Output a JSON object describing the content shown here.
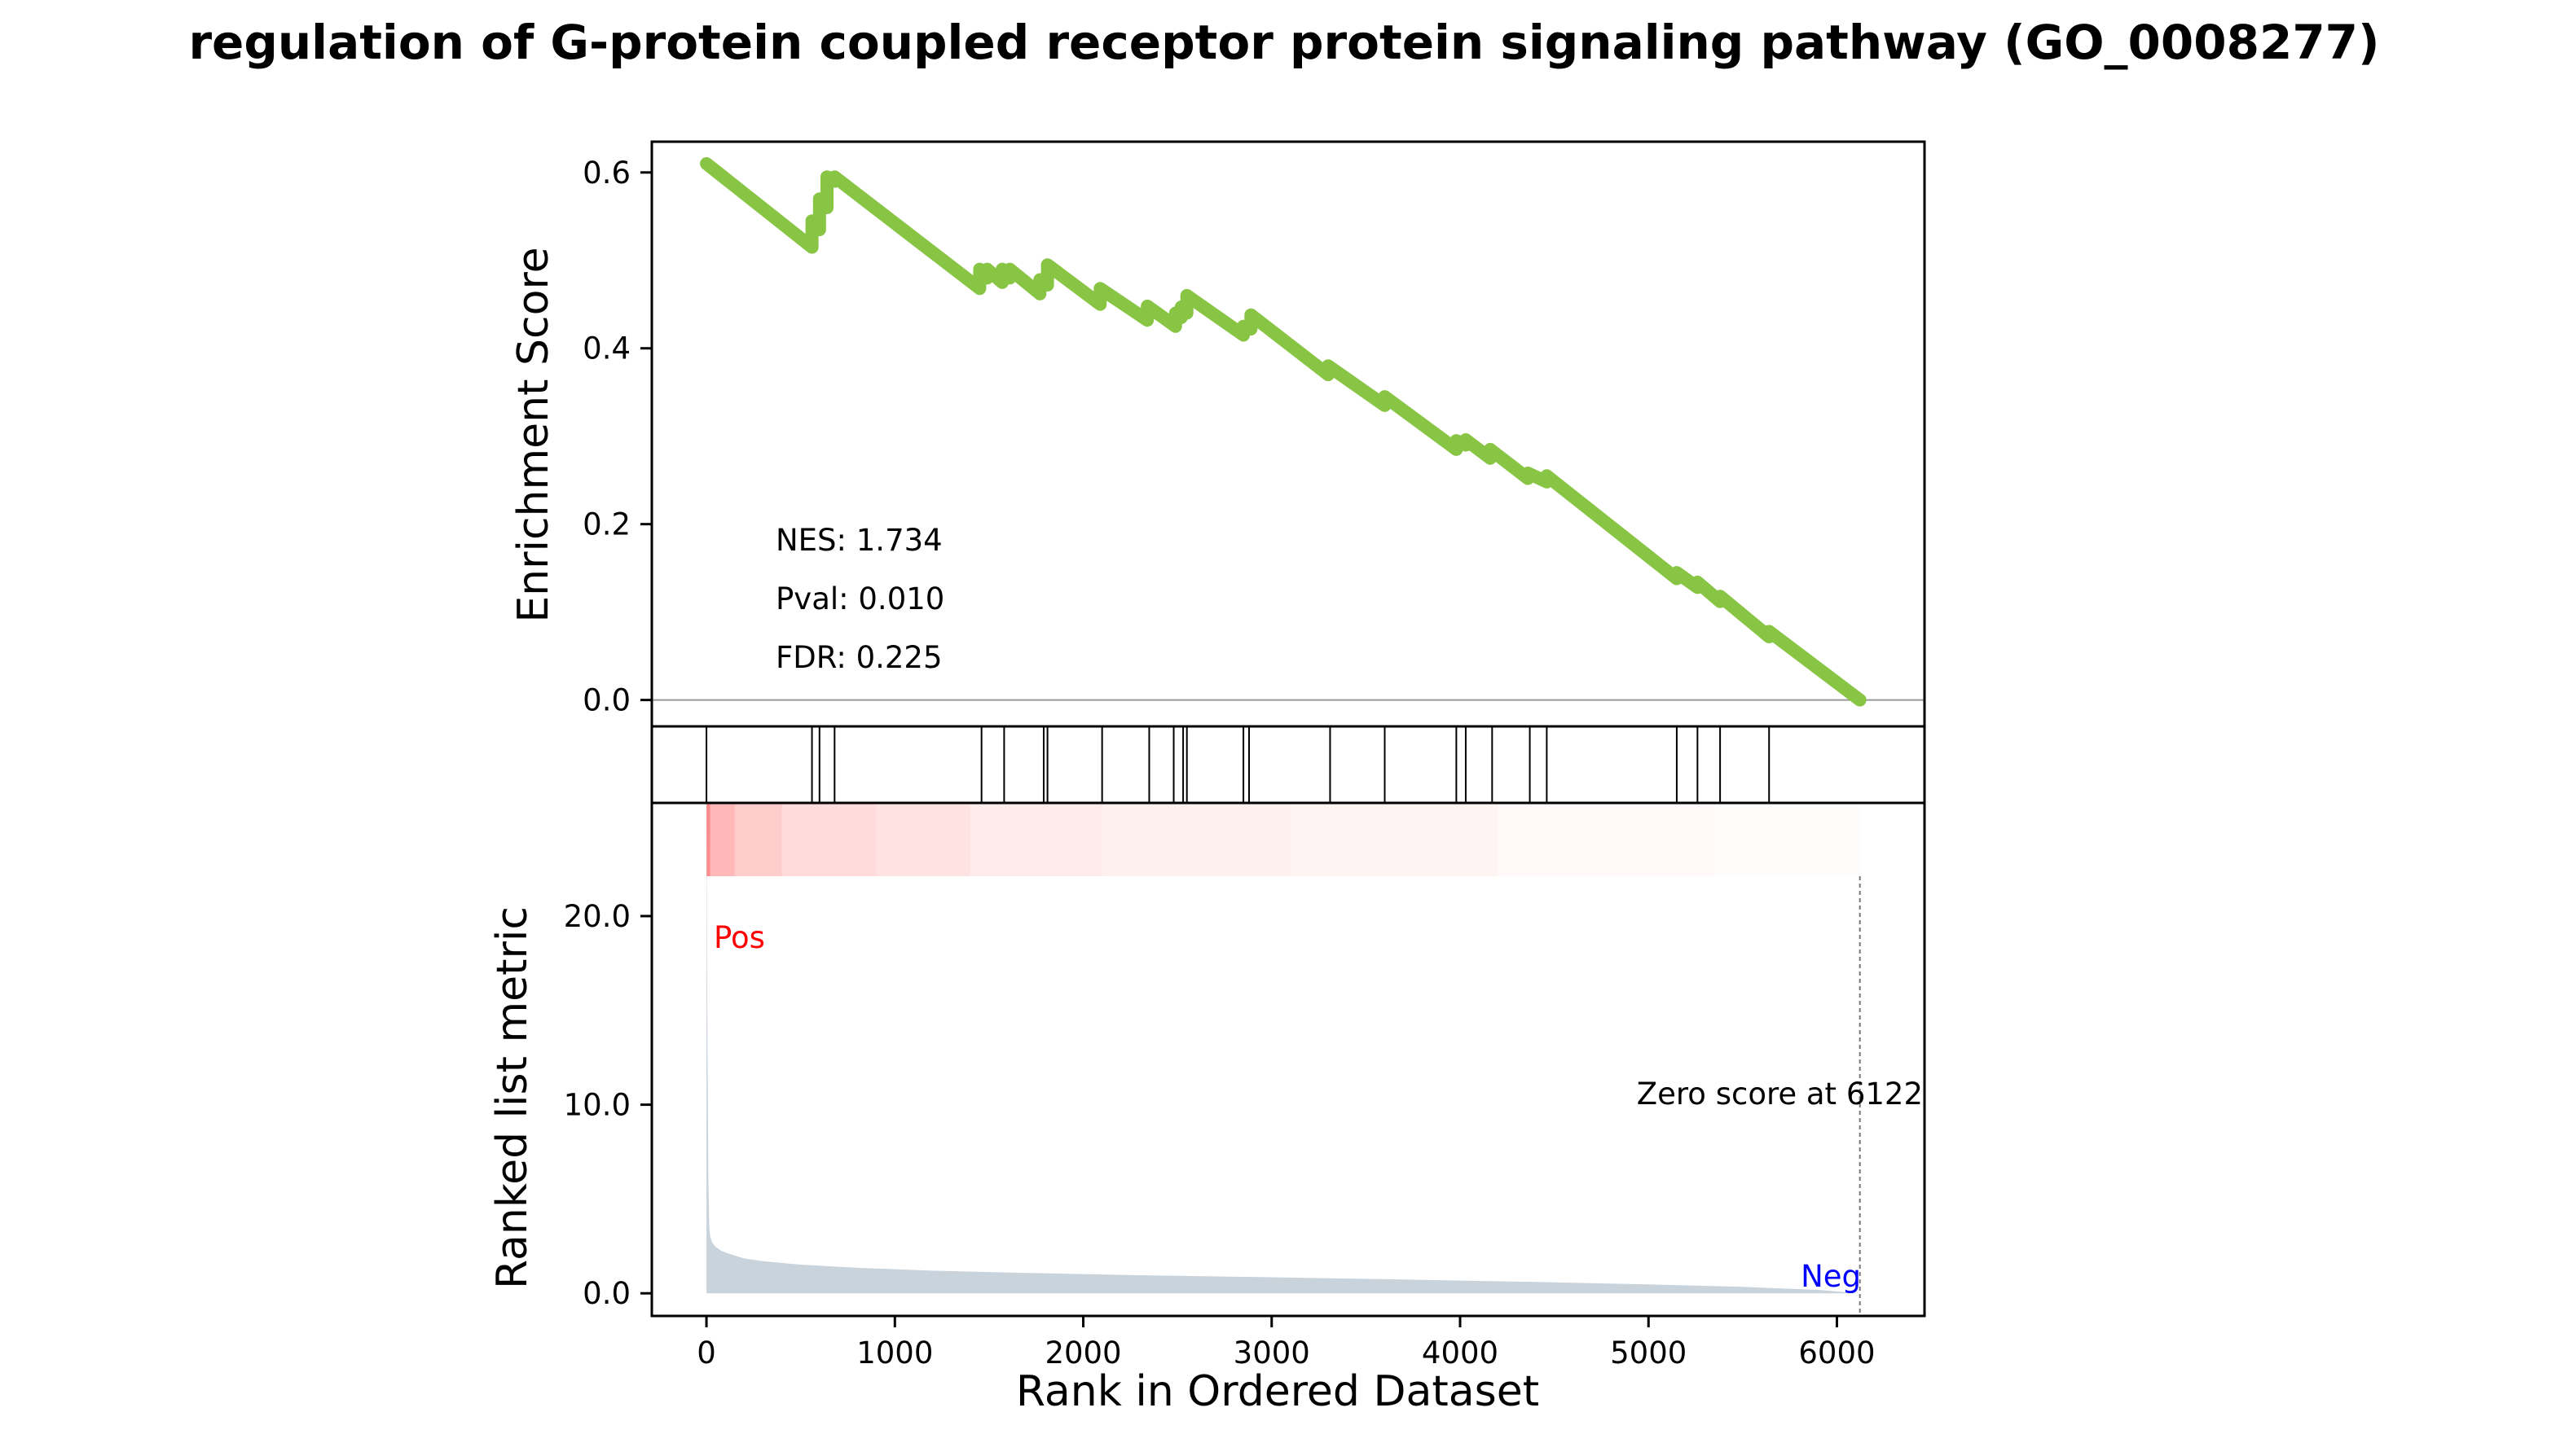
{
  "chart_data": {
    "type": "line",
    "title": "regulation of G-protein coupled receptor protein signaling pathway (GO_0008277)",
    "xlabel": "Rank in Ordered Dataset",
    "xlim": [
      -290,
      6465
    ],
    "x_ticks": [
      0,
      1000,
      2000,
      3000,
      4000,
      5000,
      6000
    ],
    "x_tick_labels": [
      "0",
      "1000",
      "2000",
      "3000",
      "4000",
      "5000",
      "6000"
    ],
    "enrichment": {
      "ylabel": "Enrichment Score",
      "ylim": [
        -0.03,
        0.635
      ],
      "y_ticks": [
        0.0,
        0.2,
        0.4,
        0.6
      ],
      "y_tick_labels": [
        "0.0",
        "0.2",
        "0.4",
        "0.6"
      ],
      "line_color": "#88C544",
      "series": [
        {
          "x": [
            0,
            560,
            560,
            600,
            600,
            640,
            640,
            680,
            680,
            1450,
            1450,
            1490,
            1490,
            1570,
            1570,
            1610,
            1610,
            1770,
            1770,
            1810,
            1810,
            2090,
            2090,
            2340,
            2340,
            2490,
            2490,
            2520,
            2520,
            2550,
            2550,
            2850,
            2850,
            2890,
            2890,
            3300,
            3300,
            3600,
            3600,
            3980,
            3980,
            4030,
            4030,
            4160,
            4160,
            4360,
            4360,
            4460,
            4460,
            5150,
            5150,
            5260,
            5260,
            5380,
            5380,
            5640,
            5640,
            6122
          ],
          "y": [
            0.61,
            0.515,
            0.545,
            0.535,
            0.57,
            0.56,
            0.595,
            0.59,
            0.595,
            0.468,
            0.49,
            0.48,
            0.49,
            0.475,
            0.49,
            0.48,
            0.49,
            0.462,
            0.478,
            0.472,
            0.495,
            0.45,
            0.468,
            0.432,
            0.448,
            0.425,
            0.44,
            0.435,
            0.447,
            0.44,
            0.46,
            0.415,
            0.425,
            0.422,
            0.438,
            0.37,
            0.38,
            0.335,
            0.345,
            0.285,
            0.295,
            0.29,
            0.296,
            0.275,
            0.285,
            0.252,
            0.258,
            0.248,
            0.255,
            0.138,
            0.145,
            0.128,
            0.134,
            0.112,
            0.118,
            0.072,
            0.078,
            0.0
          ]
        }
      ],
      "annotations": [
        "NES: 1.734",
        "Pval: 0.010",
        "FDR: 0.225"
      ]
    },
    "hits": [
      0,
      560,
      600,
      680,
      1460,
      1580,
      1790,
      1810,
      2100,
      2350,
      2480,
      2530,
      2550,
      2850,
      2880,
      3310,
      3600,
      3980,
      4030,
      4170,
      4370,
      4460,
      5150,
      5260,
      5380,
      5640
    ],
    "rank_bar": {
      "color": "#ff0000",
      "segments": [
        {
          "start": 0,
          "end": 20,
          "alpha": 0.45
        },
        {
          "start": 20,
          "end": 150,
          "alpha": 0.28
        },
        {
          "start": 150,
          "end": 400,
          "alpha": 0.2
        },
        {
          "start": 400,
          "end": 900,
          "alpha": 0.14
        },
        {
          "start": 900,
          "end": 1400,
          "alpha": 0.11
        },
        {
          "start": 1400,
          "end": 2100,
          "alpha": 0.08
        },
        {
          "start": 2100,
          "end": 3100,
          "alpha": 0.06
        },
        {
          "start": 3100,
          "end": 4200,
          "alpha": 0.045
        },
        {
          "start": 4200,
          "end": 5350,
          "alpha": 0.025
        },
        {
          "start": 5350,
          "end": 6122,
          "alpha": 0.01
        }
      ]
    },
    "metric": {
      "ylabel": "Ranked list metric",
      "ylim": [
        -1.2,
        26.0
      ],
      "y_ticks": [
        0.0,
        10.0,
        20.0
      ],
      "y_tick_labels": [
        "0.0",
        "10.0",
        "20.0"
      ],
      "fill_color": "#C9D3DC",
      "series": [
        {
          "x": [
            0,
            5,
            10,
            15,
            20,
            30,
            50,
            80,
            120,
            200,
            300,
            500,
            800,
            1200,
            1700,
            2300,
            3000,
            3700,
            4400,
            5000,
            5500,
            5900,
            6122
          ],
          "y": [
            24.8,
            14.0,
            6.0,
            3.5,
            3.0,
            2.7,
            2.45,
            2.25,
            2.1,
            1.85,
            1.7,
            1.52,
            1.35,
            1.2,
            1.08,
            0.96,
            0.85,
            0.73,
            0.6,
            0.47,
            0.34,
            0.18,
            0.0
          ]
        }
      ],
      "zero_cross": 6122,
      "annotations": {
        "pos": "Pos",
        "neg": "Neg",
        "zero": "Zero score at 6122"
      },
      "pos_color": "#ff0000",
      "neg_color": "#0000ff"
    }
  }
}
